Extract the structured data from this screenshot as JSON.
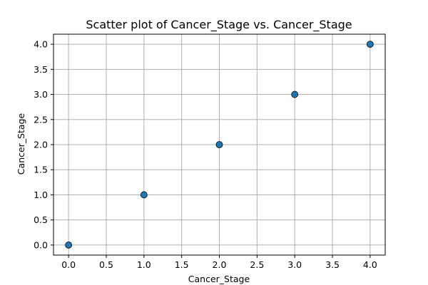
{
  "chart_data": {
    "type": "scatter",
    "title": "Scatter plot of Cancer_Stage vs. Cancer_Stage",
    "xlabel": "Cancer_Stage",
    "ylabel": "Cancer_Stage",
    "x": [
      0,
      1,
      2,
      3,
      4
    ],
    "y": [
      0,
      1,
      2,
      3,
      4
    ],
    "xlim": [
      -0.2,
      4.2
    ],
    "ylim": [
      -0.2,
      4.2
    ],
    "xticks": [
      "0.0",
      "0.5",
      "1.0",
      "1.5",
      "2.0",
      "2.5",
      "3.0",
      "3.5",
      "4.0"
    ],
    "yticks": [
      "0.0",
      "0.5",
      "1.0",
      "1.5",
      "2.0",
      "2.5",
      "3.0",
      "3.5",
      "4.0"
    ],
    "grid": true,
    "marker_color": "#1f77b4",
    "marker_edge_color": "#000000",
    "grid_color": "#b0b0b0"
  }
}
